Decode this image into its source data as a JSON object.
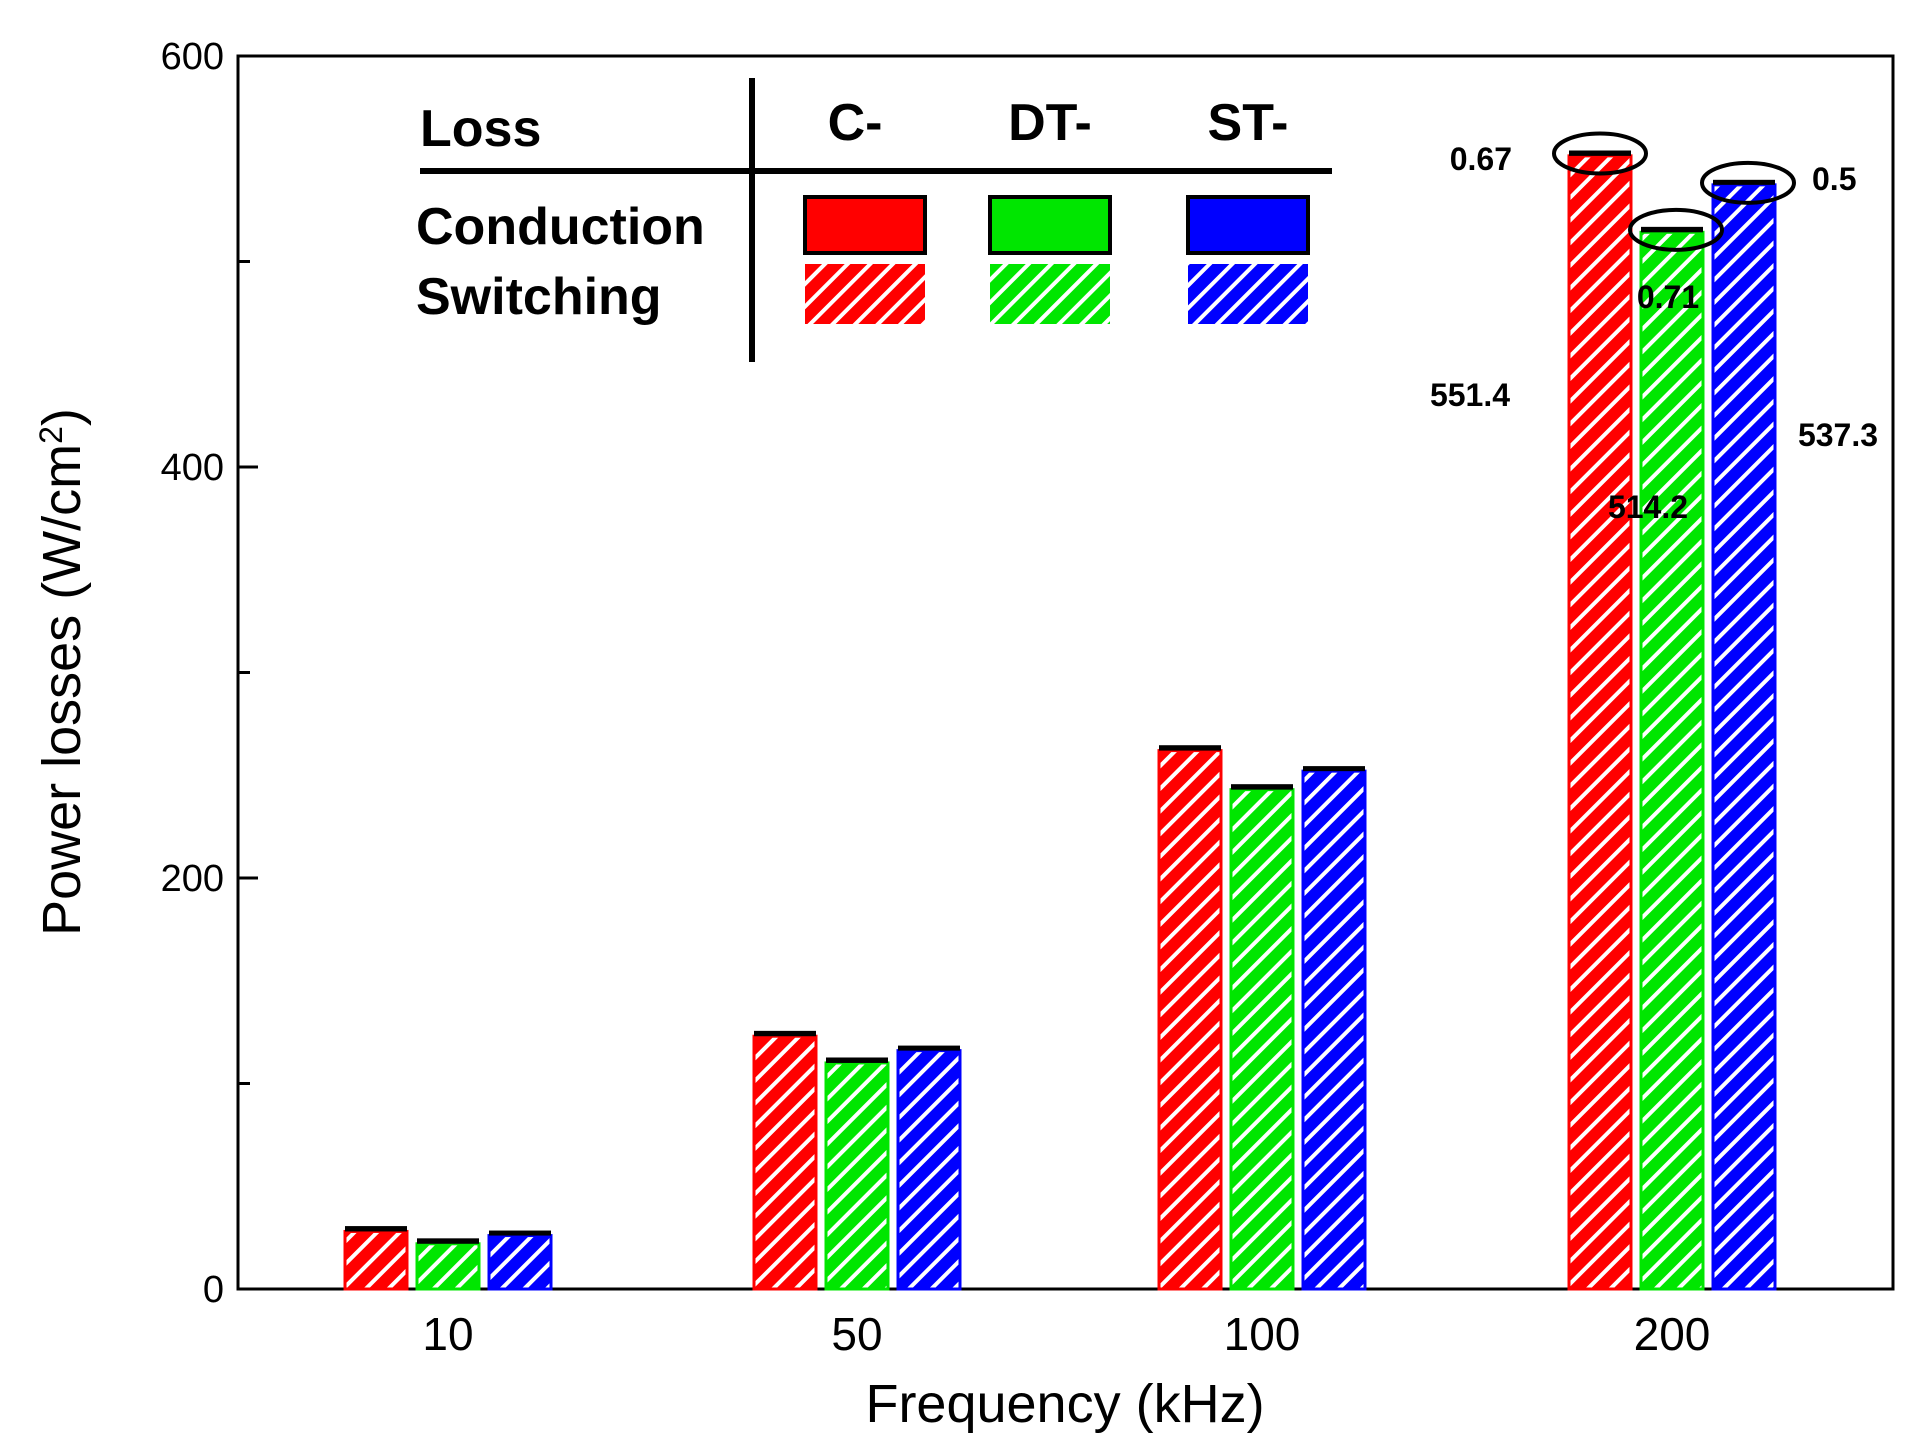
{
  "chart_data": {
    "type": "bar",
    "xlabel": "Frequency (kHz)",
    "ylabel": "Power losses (W/cm",
    "ylabel_sup": "2",
    "ylabel_end": ")",
    "ylim": [
      0,
      600
    ],
    "yticks": [
      "0",
      "200",
      "400",
      "600"
    ],
    "yminor": [
      100,
      300,
      500
    ],
    "categories": [
      "10",
      "50",
      "100",
      "200"
    ],
    "series": [
      {
        "name": "C-",
        "color": "#ff0000",
        "conduction": [
          0.67,
          0.67,
          0.67,
          0.67
        ],
        "switching": [
          28,
          123,
          262,
          551.4
        ]
      },
      {
        "name": "DT-",
        "color": "#00e600",
        "conduction": [
          0.71,
          0.71,
          0.71,
          0.71
        ],
        "switching": [
          22,
          110,
          243,
          514.2
        ]
      },
      {
        "name": "ST-",
        "color": "#0000ff",
        "conduction": [
          0.5,
          0.5,
          0.5,
          0.5
        ],
        "switching": [
          26,
          116,
          252,
          537.3
        ]
      }
    ],
    "legend": {
      "header": "Loss",
      "rows": [
        "Conduction",
        "Switching"
      ],
      "columns": [
        "C-",
        "DT-",
        "ST-"
      ],
      "placement": "top-left"
    },
    "annotations": {
      "conduction_labels": [
        "0.67",
        "0.71",
        "0.5"
      ],
      "switching_labels": [
        "551.4",
        "514.2",
        "537.3"
      ]
    }
  }
}
